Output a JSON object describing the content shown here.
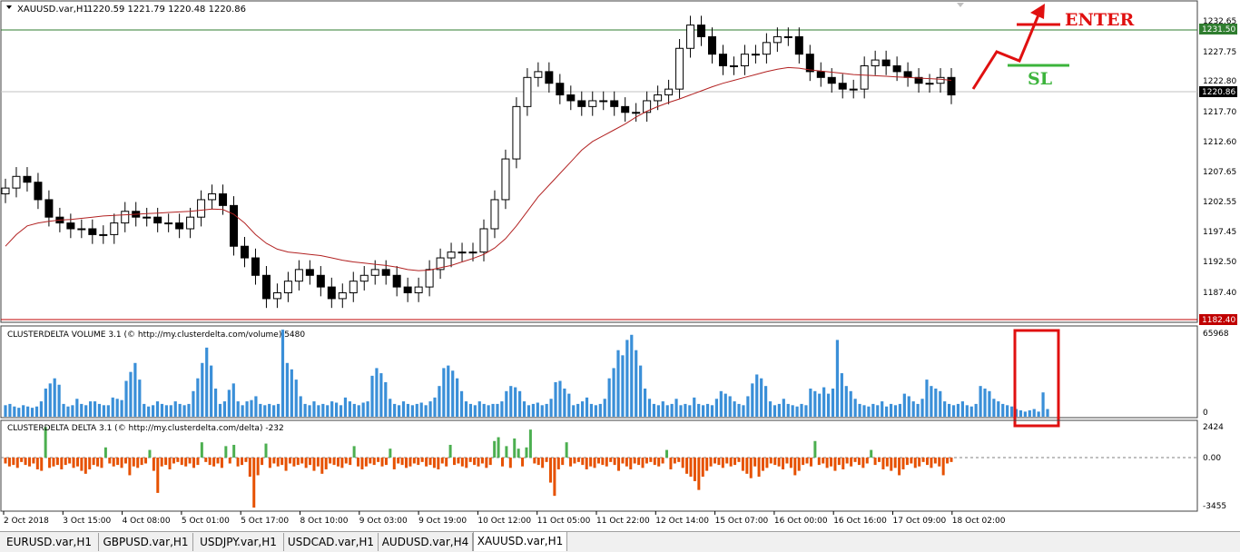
{
  "main_header": {
    "symbol": "XAUUSD.var,H1",
    "ohlc": "1220.59 1221.79 1220.48 1220.86"
  },
  "volume_header": "CLUSTERDELTA VOLUME 3.1 (© http://my.clusterdelta.com/volume) 5480",
  "delta_header": "CLUSTERDELTA DELTA 3.1 (© http://my.clusterdelta.com/delta) -232",
  "price_axis": {
    "ticks": [
      "1232.65",
      "1227.75",
      "1222.80",
      "1217.70",
      "1212.60",
      "1207.65",
      "1202.55",
      "1197.45",
      "1192.50",
      "1187.40"
    ],
    "marker_green": "1231.50",
    "marker_current": "1220.86",
    "marker_red": "1182.40"
  },
  "volume_axis": {
    "ticks": [
      "65968",
      "0"
    ]
  },
  "delta_axis": {
    "ticks": [
      "2424",
      "0.00",
      "-3455"
    ]
  },
  "time_axis": [
    "2 Oct 2018",
    "3 Oct 15:00",
    "4 Oct 08:00",
    "5 Oct 01:00",
    "5 Oct 17:00",
    "8 Oct 10:00",
    "9 Oct 03:00",
    "9 Oct 19:00",
    "10 Oct 12:00",
    "11 Oct 05:00",
    "11 Oct 22:00",
    "12 Oct 14:00",
    "15 Oct 07:00",
    "16 Oct 00:00",
    "16 Oct 16:00",
    "17 Oct 09:00",
    "18 Oct 02:00"
  ],
  "annotations": {
    "enter": "ENTER",
    "sl": "SL"
  },
  "colors": {
    "bull_delta": "#4caf50",
    "bear_delta": "#e65100",
    "volume": "#3a8fd8",
    "ma": "#b22222",
    "annotation_red": "#e01010",
    "annotation_green": "#3cb43c"
  },
  "tabs": [
    {
      "label": "EURUSD.var,H1",
      "active": false
    },
    {
      "label": "GBPUSD.var,H1",
      "active": false
    },
    {
      "label": "USDJPY.var,H1",
      "active": false
    },
    {
      "label": "USDCAD.var,H1",
      "active": false
    },
    {
      "label": "AUDUSD.var,H4",
      "active": false
    },
    {
      "label": "XAUUSD.var,H1",
      "active": true
    }
  ],
  "chart_data": [
    {
      "type": "line",
      "title": "XAUUSD.var,H1",
      "ylim": [
        1182.4,
        1234.5
      ],
      "grid": false,
      "series": [
        {
          "name": "",
          "values": [
            1205,
            1207,
            1206,
            1203,
            1200,
            1199,
            1198,
            1198,
            1197,
            1197,
            1199,
            1201,
            1200,
            1200,
            1199,
            1199,
            1198,
            1200,
            1203,
            1204,
            1202,
            1195,
            1193,
            1190,
            1186,
            1187,
            1189,
            1191,
            1190,
            1188,
            1186,
            1187,
            1189,
            1190,
            1191,
            1190,
            1188,
            1187,
            1188,
            1191,
            1193,
            1194,
            1194,
            1194,
            1198,
            1203,
            1210,
            1219,
            1224,
            1225,
            1223,
            1221,
            1220,
            1219,
            1220,
            1220,
            1219,
            1218,
            1218,
            1220,
            1221,
            1222,
            1229,
            1233,
            1231,
            1228,
            1226,
            1226,
            1228,
            1228,
            1230,
            1231,
            1231,
            1228,
            1225,
            1224,
            1223,
            1222,
            1222,
            1226,
            1227,
            1226,
            1225,
            1224,
            1223,
            1223,
            1224,
            1221
          ]
        },
        {
          "name": "",
          "values": [
            1195,
            1197,
            1198.5,
            1199,
            1199.3,
            1199.5,
            1199.6,
            1199.8,
            1200,
            1200.2,
            1200.3,
            1200.4,
            1200.5,
            1200.6,
            1200.7,
            1200.8,
            1200.9,
            1201,
            1201.2,
            1201.4,
            1201.3,
            1200.5,
            1199,
            1197,
            1195.5,
            1194.5,
            1194,
            1193.8,
            1193.6,
            1193.4,
            1193,
            1192.6,
            1192.3,
            1192.1,
            1191.9,
            1191.7,
            1191.4,
            1191,
            1190.8,
            1190.9,
            1191.3,
            1191.7,
            1192.3,
            1192.9,
            1193.6,
            1194.7,
            1196.3,
            1198.5,
            1201,
            1203.5,
            1205.5,
            1207.5,
            1209.5,
            1211.5,
            1213,
            1214,
            1215,
            1216,
            1217.2,
            1218.2,
            1219,
            1219.7,
            1220.3,
            1221,
            1221.7,
            1222.4,
            1223,
            1223.5,
            1224,
            1224.5,
            1225,
            1225.4,
            1225.7,
            1225.6,
            1225.3,
            1225.1,
            1224.9,
            1224.7,
            1224.5,
            1224.4,
            1224.3,
            1224.2,
            1224.1,
            1224,
            1223.9,
            1223.8,
            1223.7,
            1223.5
          ]
        }
      ]
    },
    {
      "type": "bar",
      "title": "CLUSTERDELTA VOLUME 3.1",
      "ylim": [
        0,
        65968
      ],
      "values": [
        9000,
        10000,
        8000,
        7000,
        9000,
        8000,
        7000,
        8000,
        12000,
        22000,
        26000,
        30000,
        25000,
        10000,
        8000,
        9000,
        14000,
        10000,
        9000,
        12000,
        12000,
        10000,
        9000,
        9000,
        15000,
        14000,
        13000,
        28000,
        35000,
        42000,
        29000,
        10000,
        8000,
        9000,
        12000,
        10000,
        9000,
        9000,
        12000,
        10000,
        9000,
        10000,
        20000,
        30000,
        42000,
        54000,
        40000,
        22000,
        10000,
        12000,
        21000,
        26000,
        12000,
        9000,
        12000,
        13000,
        16000,
        10000,
        9000,
        10000,
        9000,
        10000,
        68000,
        42000,
        37000,
        29000,
        16000,
        10000,
        9000,
        12000,
        9000,
        10000,
        9000,
        12000,
        11000,
        9000,
        15000,
        12000,
        10000,
        9000,
        11000,
        12000,
        32000,
        38000,
        34000,
        27000,
        14000,
        10000,
        9000,
        12000,
        10000,
        9000,
        10000,
        11000,
        9000,
        12000,
        15000,
        24000,
        38000,
        40000,
        36000,
        30000,
        20000,
        12000,
        10000,
        9000,
        12000,
        10000,
        9000,
        10000,
        10000,
        12000,
        20000,
        24000,
        23000,
        20000,
        12000,
        9000,
        10000,
        11000,
        9000,
        10000,
        14000,
        27000,
        28000,
        22000,
        18000,
        9000,
        10000,
        12000,
        15000,
        10000,
        9000,
        10000,
        14000,
        30000,
        38000,
        52000,
        48000,
        60000,
        64000,
        52000,
        40000,
        22000,
        14000,
        10000,
        9000,
        12000,
        9000,
        10000,
        14000,
        9000,
        10000,
        9000,
        15000,
        10000,
        9000,
        10000,
        9000,
        14000,
        20000,
        18000,
        16000,
        12000,
        10000,
        9000,
        16000,
        26000,
        33000,
        30000,
        24000,
        12000,
        9000,
        10000,
        14000,
        10000,
        9000,
        8000,
        10000,
        9000,
        22000,
        20000,
        18000,
        23000,
        18000,
        22000,
        60000,
        34000,
        24000,
        20000,
        14000,
        10000,
        9000,
        8000,
        10000,
        9000,
        12000,
        8000,
        10000,
        9000,
        10000,
        18000,
        16000,
        12000,
        10000,
        14000,
        29000,
        24000,
        22000,
        20000,
        12000,
        10000,
        9000,
        10000,
        12000,
        9000,
        8000,
        10000,
        24000,
        22000,
        20000,
        14000,
        12000,
        10000,
        9000,
        8000,
        6000,
        5000,
        4000,
        5000,
        6000,
        4000,
        19000,
        6000
      ]
    },
    {
      "type": "bar",
      "title": "CLUSTERDELTA DELTA 3.1",
      "ylim": [
        -3455,
        2424
      ],
      "values": [
        -400,
        -600,
        -500,
        -700,
        -300,
        -500,
        -600,
        -400,
        -800,
        -900,
        2400,
        -700,
        -600,
        -500,
        -800,
        -500,
        -400,
        -700,
        -600,
        -900,
        -1100,
        -800,
        -500,
        -600,
        -700,
        800,
        -400,
        -600,
        -500,
        -700,
        -400,
        -1200,
        -600,
        -700,
        -500,
        -400,
        600,
        -900,
        -2400,
        -600,
        -500,
        -800,
        -400,
        -300,
        -500,
        -600,
        -400,
        -700,
        -500,
        1200,
        -300,
        -500,
        -600,
        -400,
        -700,
        900,
        -400,
        1000,
        -600,
        -500,
        -300,
        -1300,
        -3400,
        -1200,
        -500,
        1100,
        -700,
        -400,
        -600,
        -500,
        -900,
        -400,
        -600,
        -500,
        -400,
        -700,
        -500,
        -900,
        -600,
        -1100,
        -800,
        -400,
        -500,
        -600,
        -700,
        -400,
        -500,
        900,
        -600,
        -800,
        -600,
        -400,
        -500,
        -300,
        -600,
        -500,
        700,
        -800,
        -400,
        -500,
        -700,
        -600,
        -400,
        -500,
        -300,
        -600,
        -500,
        -700,
        -800,
        -400,
        -600,
        1000,
        -500,
        -400,
        -600,
        -700,
        -300,
        -500,
        -600,
        -400,
        -700,
        -500,
        1300,
        1600,
        -600,
        900,
        -700,
        1500,
        700,
        -600,
        800,
        2200,
        -400,
        -500,
        -700,
        -300,
        -1700,
        -2600,
        -800,
        -500,
        1200,
        -600,
        -400,
        -300,
        -500,
        -800,
        -600,
        -700,
        -400,
        -500,
        -600,
        -300,
        -500,
        -900,
        -400,
        -600,
        -800,
        -400,
        -500,
        -700,
        -400,
        -300,
        -500,
        -600,
        -400,
        600,
        -800,
        -400,
        -300,
        -700,
        -1100,
        -1300,
        -1600,
        -2200,
        -1300,
        -900,
        -600,
        -400,
        -500,
        -700,
        -400,
        -600,
        -500,
        -300,
        -900,
        -1100,
        -1400,
        -600,
        -1300,
        -900,
        -700,
        -400,
        -500,
        -600,
        -800,
        -400,
        -700,
        -1200,
        -900,
        -500,
        -400,
        -600,
        1300,
        -500,
        -400,
        -700,
        -600,
        -900,
        -500,
        -800,
        -400,
        -600,
        -300,
        -500,
        -700,
        -400,
        600,
        -500,
        -300,
        -800,
        -600,
        -900,
        -700,
        -1200,
        -800,
        -500,
        -400,
        -700,
        -600,
        -300,
        -500,
        -700,
        -400,
        -600,
        -1200,
        -400,
        -300
      ]
    }
  ]
}
